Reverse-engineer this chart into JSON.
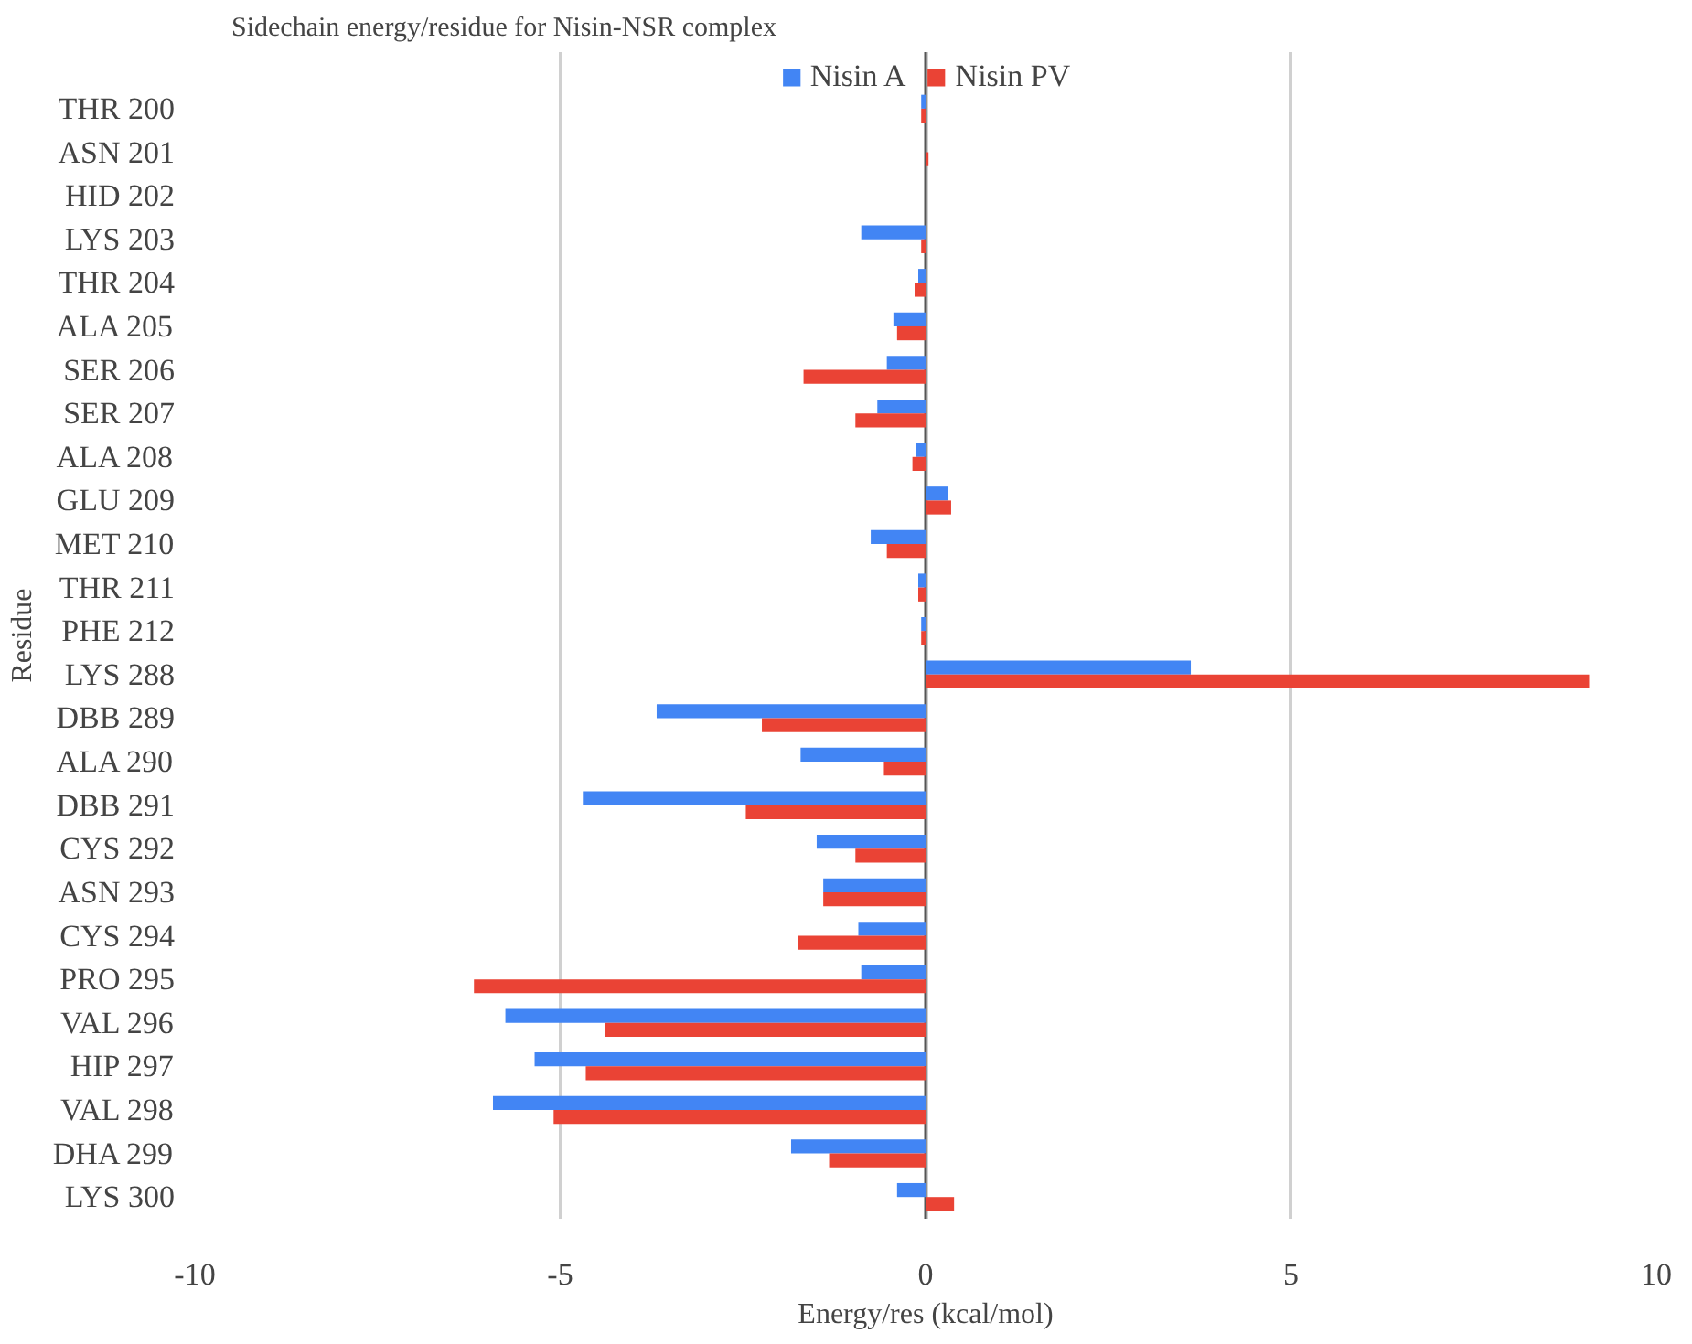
{
  "chart_data": {
    "type": "bar",
    "orientation": "horizontal",
    "title": "Sidechain energy/residue for Nisin-NSR complex",
    "xlabel": "Energy/res (kcal/mol)",
    "ylabel": "Residue",
    "categories": [
      "THR 200",
      "ASN 201",
      "HID 202",
      "LYS 203",
      "THR 204",
      "ALA 205",
      "SER 206",
      "SER 207",
      "ALA 208",
      "GLU 209",
      "MET 210",
      "THR 211",
      "PHE 212",
      "LYS 288",
      "DBB 289",
      "ALA 290",
      "DBB 291",
      "CYS 292",
      "ASN 293",
      "CYS 294",
      "PRO 295",
      "VAL 296",
      "HIP 297",
      "VAL 298",
      "DHA 299",
      "LYS 300"
    ],
    "series": [
      {
        "name": "Nisin A",
        "color": "#4285f4",
        "values": [
          -0.06,
          null,
          0,
          -0.88,
          -0.1,
          -0.44,
          -0.53,
          -0.66,
          -0.13,
          0.31,
          -0.75,
          -0.1,
          -0.06,
          3.63,
          -3.68,
          -1.71,
          -4.69,
          -1.49,
          -1.4,
          -0.92,
          -0.88,
          -5.75,
          -5.35,
          -5.92,
          -1.84,
          -0.39
        ]
      },
      {
        "name": "Nisin PV",
        "color": "#ea4335",
        "values": [
          -0.06,
          0.04,
          0,
          -0.06,
          -0.15,
          -0.39,
          -1.67,
          -0.96,
          -0.18,
          0.35,
          -0.53,
          -0.1,
          -0.06,
          9.08,
          -2.24,
          -0.57,
          -2.46,
          -0.96,
          -1.4,
          -1.75,
          -6.18,
          -4.39,
          -4.65,
          -5.09,
          -1.32,
          0.39
        ]
      }
    ],
    "xlim": [
      -10,
      10
    ],
    "xticks": [
      -10,
      -5,
      0,
      5,
      10
    ],
    "grid": "x",
    "legend": "top"
  }
}
